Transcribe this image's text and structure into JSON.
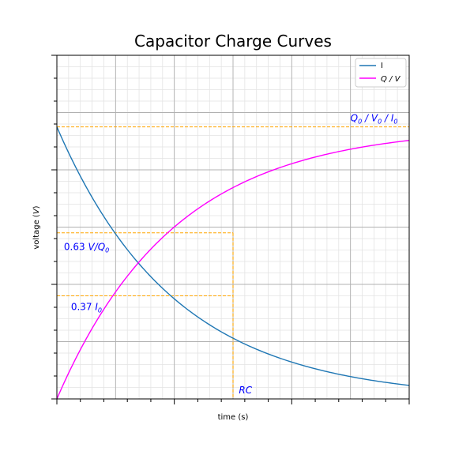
{
  "chart_data": {
    "type": "line",
    "title": "Capacitor Charge Curves",
    "xlabel": "time (s)",
    "ylabel": "voltage (V)",
    "xlim": [
      0,
      3
    ],
    "ylim": [
      0,
      1.2
    ],
    "grid": true,
    "legend_position": "top-right",
    "series": [
      {
        "name": "I",
        "color": "#1f77b4",
        "function": "exp(-t)"
      },
      {
        "name": "Q / V",
        "color": "#ff00ff",
        "function": "1 - exp(-t)"
      }
    ],
    "reference_lines": [
      {
        "kind": "horizontal",
        "y": 0.95,
        "x_to": 3,
        "color": "#ffa500"
      },
      {
        "kind": "horizontal",
        "y": 0.58,
        "x_to": 1.5,
        "color": "#ffa500"
      },
      {
        "kind": "horizontal",
        "y": 0.36,
        "x_to": 1.5,
        "color": "#ffa500"
      },
      {
        "kind": "vertical",
        "x": 1.5,
        "y_to": 0.58,
        "color": "#ffa500"
      }
    ],
    "annotations": [
      {
        "id": "q0",
        "x": 2.5,
        "y": 0.97
      },
      {
        "id": "063",
        "x": 0.06,
        "y": 0.52
      },
      {
        "id": "037",
        "x": 0.12,
        "y": 0.31
      },
      {
        "id": "rc",
        "x": 1.55,
        "y": 0.02
      }
    ]
  }
}
